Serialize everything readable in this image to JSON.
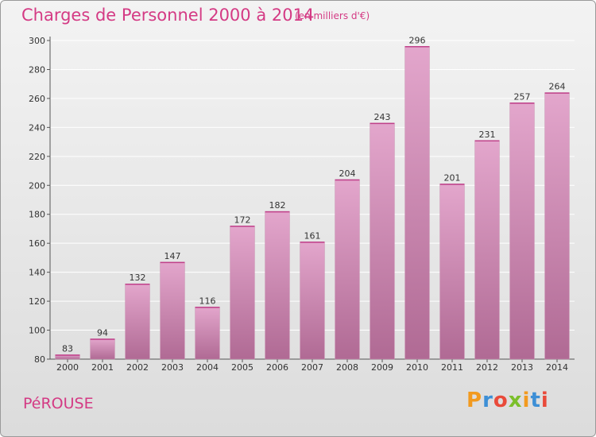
{
  "title": "Charges de Personnel 2000 à 2014",
  "unit_note": "(en milliers d'€)",
  "commune": "PéROUSE",
  "logo_text": "Proxiti",
  "colors": {
    "bar_top": "#e3a6cc",
    "bar_bottom": "#b06a94",
    "title": "#d43a84",
    "logo": [
      "#f29a1f",
      "#3d8fd6",
      "#e94a3a",
      "#7bbf2a",
      "#f29a1f",
      "#3d8fd6",
      "#e94a3a"
    ]
  },
  "chart_data": {
    "type": "bar",
    "categories": [
      "2000",
      "2001",
      "2002",
      "2003",
      "2004",
      "2005",
      "2006",
      "2007",
      "2008",
      "2009",
      "2010",
      "2011",
      "2012",
      "2013",
      "2014"
    ],
    "values": [
      83,
      94,
      132,
      147,
      116,
      172,
      182,
      161,
      204,
      243,
      296,
      201,
      231,
      257,
      264
    ],
    "ylim": [
      80,
      300
    ],
    "yticks": [
      80,
      100,
      120,
      140,
      160,
      180,
      200,
      220,
      240,
      260,
      280,
      300
    ],
    "grid": true
  }
}
